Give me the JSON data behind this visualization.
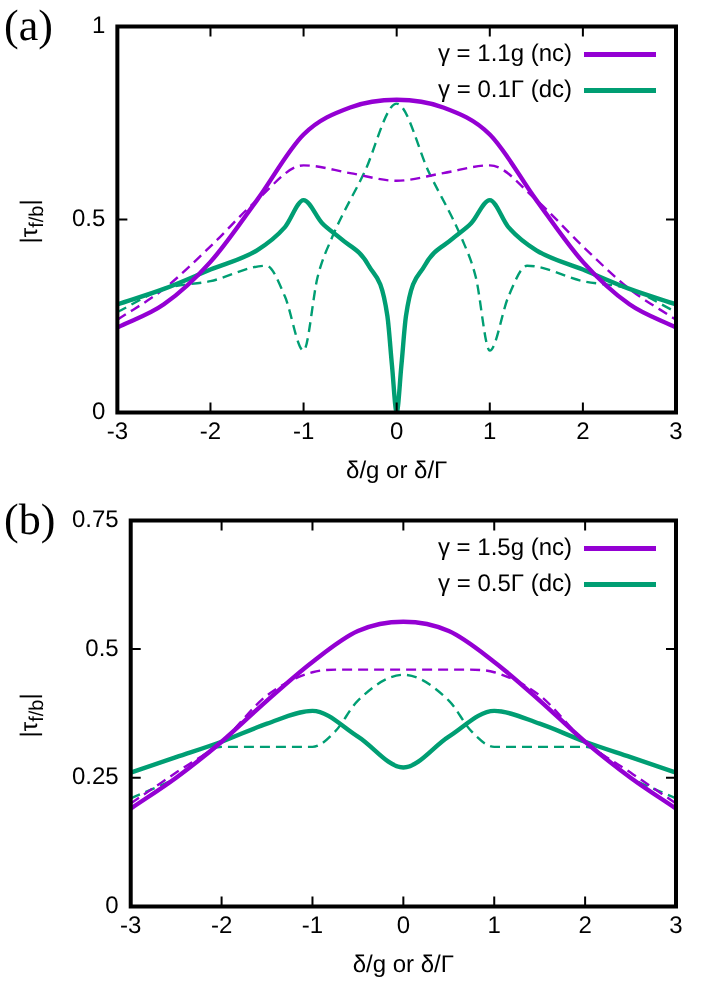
{
  "chart_data": [
    {
      "type": "line",
      "xlabel": "δ/g or δ/Γ",
      "ylabel": "|τ$_{f/b}$|",
      "annotations": [
        "(a)"
      ],
      "xlim": [
        -3,
        3
      ],
      "ylim": [
        0,
        1
      ],
      "xticks": [
        -3,
        -2,
        -1,
        0,
        1,
        2,
        3
      ],
      "yticks": [
        0,
        0.5,
        1
      ],
      "grid": false,
      "legend": "top right",
      "marker": "none",
      "series": [
        {
          "name": "γ = 1.1g (nc)",
          "color": "#9400d3",
          "line_style": "solid",
          "x": [
            -3,
            -2.5,
            -2,
            -1.5,
            -1,
            -0.5,
            0,
            0.5,
            1,
            1.5,
            2,
            2.5,
            3
          ],
          "values": [
            0.22,
            0.28,
            0.39,
            0.55,
            0.72,
            0.79,
            0.81,
            0.79,
            0.72,
            0.55,
            0.39,
            0.28,
            0.22
          ]
        },
        {
          "name": "γ = 0.1Γ (dc)",
          "color": "#009e73",
          "line_style": "solid",
          "x": [
            -3,
            -2.5,
            -2,
            -1.5,
            -1.2,
            -1,
            -0.8,
            -0.6,
            -0.3,
            -0.1,
            -0.05,
            0,
            0.05,
            0.1,
            0.3,
            0.6,
            0.8,
            1,
            1.2,
            1.5,
            2,
            2.5,
            3
          ],
          "values": [
            0.28,
            0.32,
            0.37,
            0.42,
            0.48,
            0.55,
            0.49,
            0.45,
            0.38,
            0.25,
            0.12,
            0,
            0.12,
            0.25,
            0.38,
            0.45,
            0.49,
            0.55,
            0.48,
            0.42,
            0.37,
            0.32,
            0.28
          ]
        },
        {
          "color": "#9400d3",
          "line_style": "dashed",
          "x": [
            -3,
            -2.5,
            -2,
            -1.5,
            -1,
            -0.5,
            0,
            0.5,
            1,
            1.5,
            2,
            2.5,
            3
          ],
          "values": [
            0.24,
            0.32,
            0.43,
            0.55,
            0.64,
            0.62,
            0.6,
            0.62,
            0.64,
            0.55,
            0.43,
            0.32,
            0.24
          ]
        },
        {
          "color": "#009e73",
          "line_style": "dashed",
          "x": [
            -3,
            -2.5,
            -2,
            -1.4,
            -1.2,
            -1,
            -0.85,
            -0.7,
            -0.35,
            0,
            0.35,
            0.7,
            0.85,
            1,
            1.2,
            1.4,
            2,
            2.5,
            3
          ],
          "values": [
            0.26,
            0.32,
            0.34,
            0.38,
            0.3,
            0.16,
            0.35,
            0.45,
            0.62,
            0.8,
            0.62,
            0.45,
            0.35,
            0.16,
            0.3,
            0.38,
            0.34,
            0.32,
            0.26
          ]
        }
      ]
    },
    {
      "type": "line",
      "xlabel": "δ/g or δ/Γ",
      "ylabel": "|τ$_{f/b}$|",
      "annotations": [
        "(b)"
      ],
      "xlim": [
        -3,
        3
      ],
      "ylim": [
        0,
        0.75
      ],
      "xticks": [
        -3,
        -2,
        -1,
        0,
        1,
        2,
        3
      ],
      "yticks": [
        0,
        0.25,
        0.5,
        0.75
      ],
      "grid": false,
      "legend": "top right",
      "marker": "none",
      "series": [
        {
          "name": "γ = 1.5g (nc)",
          "color": "#9400d3",
          "line_style": "solid",
          "x": [
            -3,
            -2.5,
            -2,
            -1.5,
            -1,
            -0.5,
            0,
            0.5,
            1,
            1.5,
            2,
            2.5,
            3
          ],
          "values": [
            0.19,
            0.25,
            0.32,
            0.4,
            0.475,
            0.535,
            0.553,
            0.535,
            0.475,
            0.4,
            0.32,
            0.25,
            0.19
          ]
        },
        {
          "name": "γ = 0.5Γ (dc)",
          "color": "#009e73",
          "line_style": "solid",
          "x": [
            -3,
            -2.5,
            -2,
            -1.5,
            -1,
            -0.5,
            0,
            0.5,
            1,
            1.5,
            2,
            2.5,
            3
          ],
          "values": [
            0.26,
            0.29,
            0.32,
            0.355,
            0.38,
            0.33,
            0.27,
            0.33,
            0.38,
            0.355,
            0.32,
            0.29,
            0.26
          ]
        },
        {
          "color": "#9400d3",
          "line_style": "dashed",
          "x": [
            -3,
            -2.5,
            -2,
            -1.5,
            -1,
            -0.7,
            0,
            0.7,
            1,
            1.5,
            2,
            2.5,
            3
          ],
          "values": [
            0.2,
            0.26,
            0.32,
            0.41,
            0.455,
            0.46,
            0.46,
            0.46,
            0.455,
            0.41,
            0.32,
            0.26,
            0.2
          ]
        },
        {
          "color": "#009e73",
          "line_style": "dashed",
          "x": [
            -3,
            -2.5,
            -2,
            -1.5,
            -1,
            -0.75,
            -0.5,
            0,
            0.5,
            0.75,
            1,
            1.5,
            2,
            2.5,
            3
          ],
          "values": [
            0.21,
            0.25,
            0.31,
            0.31,
            0.31,
            0.34,
            0.4,
            0.45,
            0.4,
            0.34,
            0.31,
            0.31,
            0.31,
            0.25,
            0.21
          ]
        }
      ]
    }
  ]
}
